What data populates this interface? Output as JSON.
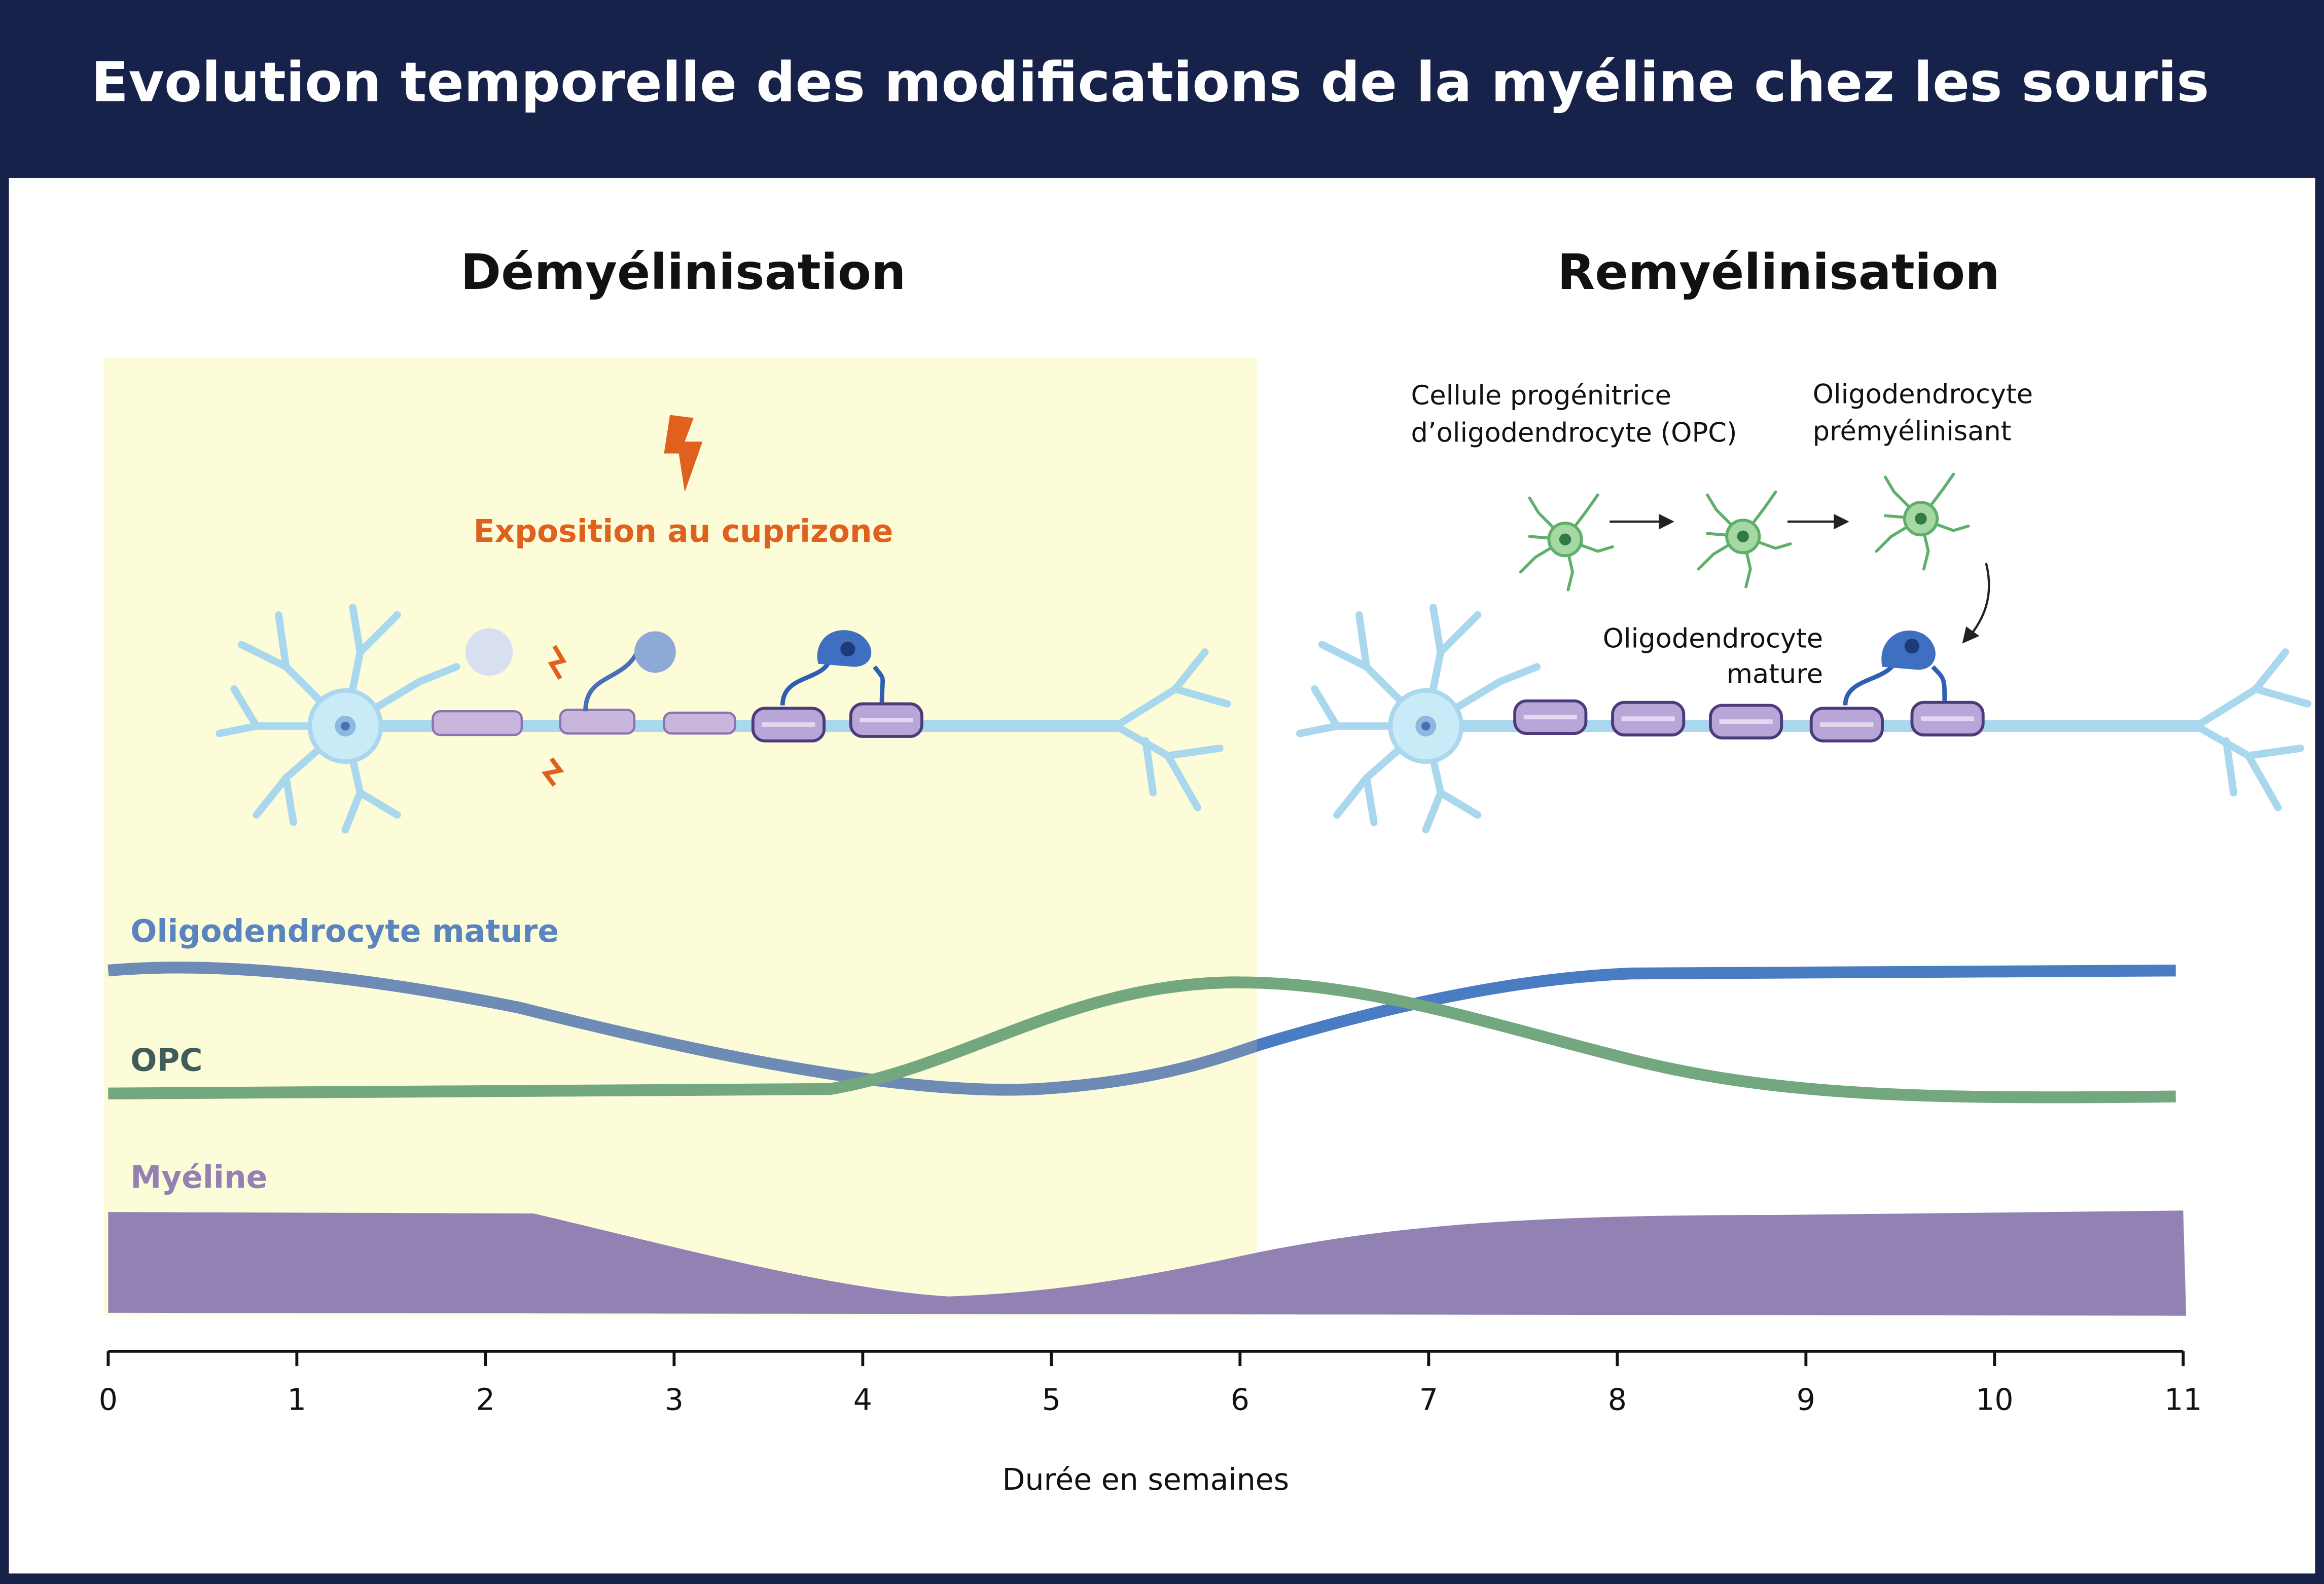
{
  "header": {
    "title": "Evolution temporelle des modifications de la myéline chez les souris"
  },
  "sections": [
    "Démyélinisation",
    "Remyélinisation"
  ],
  "exposure": "Exposition au cuprizone",
  "cells": {
    "opc": [
      "Cellule progénitrice",
      "d’oligodendrocyte (OPC)"
    ],
    "premyelinating": [
      "Oligodendrocyte",
      "prémyélinisant"
    ],
    "mature": [
      "Oligodendrocyte",
      "mature"
    ]
  },
  "curves": [
    "Oligodendrocyte mature",
    "OPC",
    "Myéline"
  ],
  "axis": {
    "ticks": [
      0,
      1,
      2,
      3,
      4,
      5,
      6,
      7,
      8,
      9,
      10,
      11
    ],
    "label": "Durée en semaines"
  }
}
